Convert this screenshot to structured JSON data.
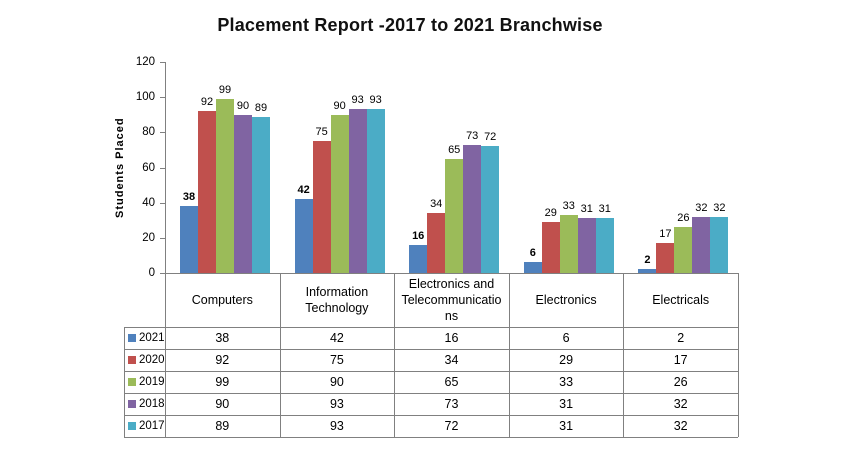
{
  "title": "Placement Report -2017 to 2021 Branchwise",
  "chart_data": {
    "type": "bar",
    "title": "Placement Report -2017 to 2021 Branchwise",
    "xlabel": "",
    "ylabel": "Students Placed",
    "ylim": [
      0,
      120
    ],
    "yticks": [
      0,
      20,
      40,
      60,
      80,
      100,
      120
    ],
    "grid": false,
    "data_labels": true,
    "data_table": true,
    "legend_position": "table-left",
    "categories": [
      "Computers",
      "Information Technology",
      "Electronics and Telecommunications",
      "Electronics",
      "Electricals"
    ],
    "category_labels_display": [
      "Computers",
      "Information\nTechnology",
      "Electronics and\nTelecommunicatio\nns",
      "Electronics",
      "Electricals"
    ],
    "series": [
      {
        "name": "2021",
        "color": "#4F81BD",
        "values": [
          38,
          42,
          16,
          6,
          2
        ],
        "label_bold": true
      },
      {
        "name": "2020",
        "color": "#C0504D",
        "values": [
          92,
          75,
          34,
          29,
          17
        ],
        "label_bold": false
      },
      {
        "name": "2019",
        "color": "#9BBB59",
        "values": [
          99,
          90,
          65,
          33,
          26
        ],
        "label_bold": false
      },
      {
        "name": "2018",
        "color": "#8064A2",
        "values": [
          90,
          93,
          73,
          31,
          32
        ],
        "label_bold": false
      },
      {
        "name": "2017",
        "color": "#4BACC6",
        "values": [
          89,
          93,
          72,
          31,
          32
        ],
        "label_bold": false
      }
    ],
    "border_color": "#808080",
    "text_color": "#000000"
  }
}
